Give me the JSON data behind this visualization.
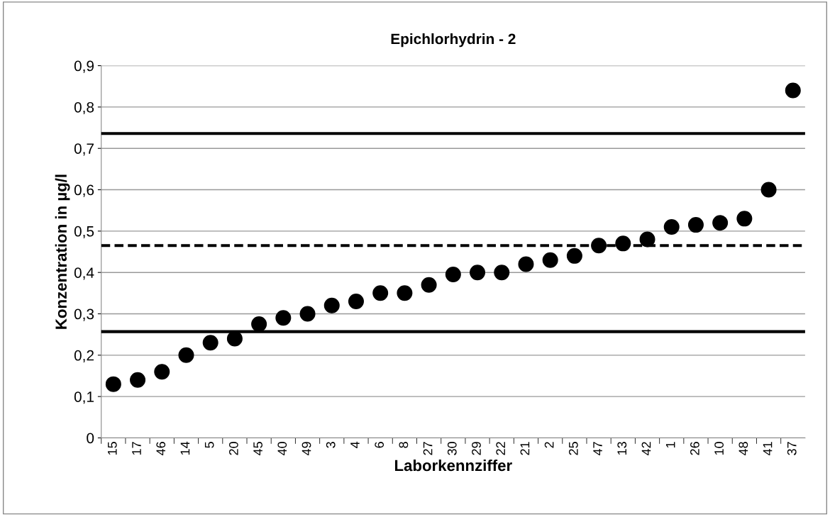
{
  "chart_data": {
    "type": "scatter",
    "title": "Epichlorhydrin - 2",
    "xlabel": "Laborkennziffer",
    "ylabel": "Konzentration in µg/l",
    "categories": [
      "15",
      "17",
      "46",
      "14",
      "5",
      "20",
      "45",
      "40",
      "49",
      "3",
      "4",
      "6",
      "8",
      "27",
      "30",
      "29",
      "22",
      "21",
      "2",
      "25",
      "47",
      "13",
      "42",
      "1",
      "26",
      "10",
      "48",
      "41",
      "37"
    ],
    "series": [
      {
        "color": "#000000",
        "values": [
          0.13,
          0.14,
          0.16,
          0.2,
          0.23,
          0.24,
          0.275,
          0.29,
          0.3,
          0.32,
          0.33,
          0.35,
          0.35,
          0.37,
          0.395,
          0.4,
          0.4,
          0.42,
          0.43,
          0.44,
          0.465,
          0.47,
          0.48,
          0.51,
          0.515,
          0.52,
          0.53,
          0.6,
          0.84
        ]
      }
    ],
    "ylim": [
      0,
      0.9
    ],
    "yticks": [
      {
        "value": 0,
        "label": "0"
      },
      {
        "value": 0.1,
        "label": "0,1"
      },
      {
        "value": 0.2,
        "label": "0,2"
      },
      {
        "value": 0.3,
        "label": "0,3"
      },
      {
        "value": 0.4,
        "label": "0,4"
      },
      {
        "value": 0.5,
        "label": "0,5"
      },
      {
        "value": 0.6,
        "label": "0,6"
      },
      {
        "value": 0.7,
        "label": "0,7"
      },
      {
        "value": 0.8,
        "label": "0,8"
      },
      {
        "value": 0.9,
        "label": "0,9"
      }
    ],
    "ref_lines": [
      {
        "axis": "y",
        "value": 0.736,
        "color": "#000000",
        "line_style": "solid"
      },
      {
        "axis": "y",
        "value": 0.465,
        "color": "#000000",
        "line_style": "dashed"
      },
      {
        "axis": "y",
        "value": 0.257,
        "color": "#000000",
        "line_style": "solid"
      }
    ],
    "grid": "y",
    "marker": "circle"
  }
}
